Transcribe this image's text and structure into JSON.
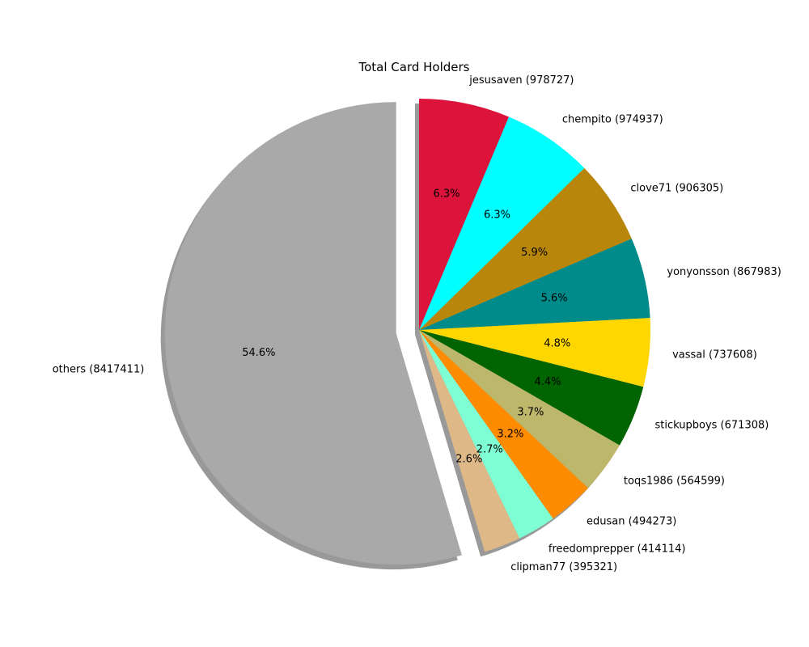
{
  "chart_data": {
    "type": "pie",
    "title": "Total Card Holders",
    "start_angle_deg": 90,
    "direction": "clockwise",
    "shadow": true,
    "legend": "none",
    "slices": [
      {
        "label": "jesusaven (978727)",
        "value": 978727,
        "pct_label": "6.3%",
        "color": "#dc143c",
        "explode": 0
      },
      {
        "label": "chempito (974937)",
        "value": 974937,
        "pct_label": "6.3%",
        "color": "#00ffff",
        "explode": 0
      },
      {
        "label": "clove71 (906305)",
        "value": 906305,
        "pct_label": "5.9%",
        "color": "#b8860b",
        "explode": 0
      },
      {
        "label": "yonyonsson (867983)",
        "value": 867983,
        "pct_label": "5.6%",
        "color": "#008b8b",
        "explode": 0
      },
      {
        "label": "vassal (737608)",
        "value": 737608,
        "pct_label": "4.8%",
        "color": "#ffd700",
        "explode": 0
      },
      {
        "label": "stickupboys (671308)",
        "value": 671308,
        "pct_label": "4.4%",
        "color": "#006400",
        "explode": 0
      },
      {
        "label": "toqs1986 (564599)",
        "value": 564599,
        "pct_label": "3.7%",
        "color": "#bdb76b",
        "explode": 0
      },
      {
        "label": "edusan (494273)",
        "value": 494273,
        "pct_label": "3.2%",
        "color": "#ff8c00",
        "explode": 0
      },
      {
        "label": "freedomprepper (414114)",
        "value": 414114,
        "pct_label": "2.7%",
        "color": "#7fffd4",
        "explode": 0
      },
      {
        "label": "clipman77 (395321)",
        "value": 395321,
        "pct_label": "2.6%",
        "color": "#deb887",
        "explode": 0
      },
      {
        "label": "others (8417411)",
        "value": 8417411,
        "pct_label": "54.6%",
        "color": "#a9a9a9",
        "explode": 0.1
      }
    ]
  }
}
